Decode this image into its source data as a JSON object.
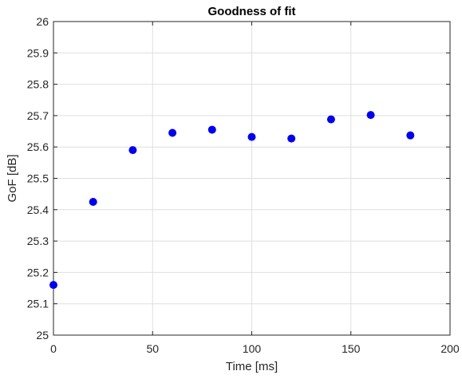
{
  "chart_data": {
    "type": "scatter",
    "title": "Goodness of fit",
    "xlabel": "Time [ms]",
    "ylabel": "GoF [dB]",
    "xlim": [
      0,
      200
    ],
    "ylim": [
      25,
      26
    ],
    "xticks": [
      0,
      50,
      100,
      150,
      200
    ],
    "yticks": [
      25,
      25.1,
      25.2,
      25.3,
      25.4,
      25.5,
      25.6,
      25.7,
      25.8,
      25.9,
      26
    ],
    "xtick_labels": [
      "0",
      "50",
      "100",
      "150",
      "200"
    ],
    "ytick_labels": [
      "25",
      "25.1",
      "25.2",
      "25.3",
      "25.4",
      "25.5",
      "25.6",
      "25.7",
      "25.8",
      "25.9",
      "26"
    ],
    "grid": true,
    "marker_color": "#0000ee",
    "series": [
      {
        "x": [
          0,
          20,
          40,
          60,
          80,
          100,
          120,
          140,
          160,
          180
        ],
        "y": [
          25.16,
          25.425,
          25.59,
          25.645,
          25.655,
          25.632,
          25.627,
          25.688,
          25.702,
          25.637
        ]
      }
    ]
  }
}
